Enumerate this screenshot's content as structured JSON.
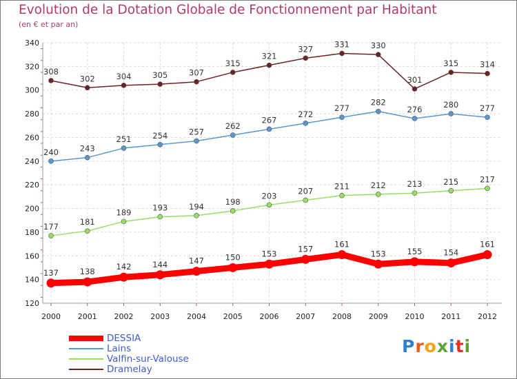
{
  "title": "Evolution de la Dotation Globale de Fonctionnement par Habitant",
  "subtitle": "(en € et par an)",
  "logo": {
    "letters": [
      {
        "ch": "P",
        "color": "#2e7fd6"
      },
      {
        "ch": "r",
        "color": "#e85b1e"
      },
      {
        "ch": "o",
        "color": "#f2a411"
      },
      {
        "ch": "x",
        "color": "#5ba331"
      },
      {
        "ch": "i",
        "color": "#2e7fd6"
      },
      {
        "ch": "t",
        "color": "#e8321e"
      },
      {
        "ch": "i",
        "color": "#5ba331"
      }
    ]
  },
  "chart_data": {
    "type": "line",
    "title": "Evolution de la Dotation Globale de Fonctionnement par Habitant",
    "subtitle": "(en € et par an)",
    "x": [
      2000,
      2001,
      2002,
      2003,
      2004,
      2005,
      2006,
      2007,
      2008,
      2009,
      2010,
      2011,
      2012
    ],
    "ylim": [
      120,
      340
    ],
    "yticks": [
      120,
      140,
      160,
      180,
      200,
      220,
      240,
      260,
      280,
      300,
      320,
      340
    ],
    "grid": true,
    "legend_position": "bottom-left",
    "series": [
      {
        "name": "DESSIA",
        "color": "#ff0000",
        "values": [
          137,
          138,
          142,
          144,
          147,
          150,
          153,
          157,
          161,
          153,
          155,
          154,
          161
        ]
      },
      {
        "name": "Lains",
        "color": "#5a97cc",
        "values": [
          240,
          243,
          251,
          254,
          257,
          262,
          267,
          272,
          277,
          282,
          276,
          280,
          277
        ]
      },
      {
        "name": "Valfin-sur-Valouse",
        "color": "#99dd66",
        "values": [
          177,
          181,
          189,
          193,
          194,
          198,
          203,
          207,
          211,
          212,
          213,
          215,
          217
        ]
      },
      {
        "name": "Dramelay",
        "color": "#6b2222",
        "values": [
          308,
          302,
          304,
          305,
          307,
          315,
          321,
          327,
          331,
          330,
          301,
          315,
          314
        ]
      }
    ]
  }
}
